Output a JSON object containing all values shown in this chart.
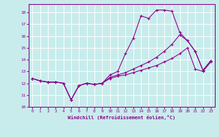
{
  "xlabel": "Windchill (Refroidissement éolien,°C)",
  "background_color": "#c8ecec",
  "line_color": "#8b008b",
  "grid_color": "#aaaaaa",
  "xmin": -0.5,
  "xmax": 23.5,
  "ymin": 10,
  "ymax": 18.7,
  "yticks": [
    10,
    11,
    12,
    13,
    14,
    15,
    16,
    17,
    18
  ],
  "xticks": [
    0,
    1,
    2,
    3,
    4,
    5,
    6,
    7,
    8,
    9,
    10,
    11,
    12,
    13,
    14,
    15,
    16,
    17,
    18,
    19,
    20,
    21,
    22,
    23
  ],
  "series1_x": [
    0,
    1,
    2,
    3,
    4,
    5,
    6,
    7,
    8,
    9,
    10,
    11,
    12,
    13,
    14,
    15,
    16,
    17,
    18,
    19,
    20,
    21,
    22,
    23
  ],
  "series1_y": [
    12.4,
    12.2,
    12.1,
    12.1,
    12.0,
    10.6,
    11.8,
    12.0,
    11.9,
    12.0,
    12.7,
    13.0,
    14.5,
    15.8,
    17.7,
    17.5,
    18.2,
    18.2,
    18.1,
    16.3,
    15.6,
    14.7,
    13.1,
    13.9
  ],
  "series2_x": [
    0,
    1,
    2,
    3,
    4,
    5,
    6,
    7,
    8,
    9,
    10,
    11,
    12,
    13,
    14,
    15,
    16,
    17,
    18,
    19,
    20,
    21,
    22,
    23
  ],
  "series2_y": [
    12.4,
    12.2,
    12.1,
    12.1,
    12.0,
    10.6,
    11.8,
    12.0,
    11.9,
    12.0,
    12.5,
    12.7,
    12.9,
    13.2,
    13.5,
    13.8,
    14.2,
    14.7,
    15.3,
    16.1,
    15.6,
    14.7,
    13.1,
    13.9
  ],
  "series3_x": [
    0,
    1,
    2,
    3,
    4,
    5,
    6,
    7,
    8,
    9,
    10,
    11,
    12,
    13,
    14,
    15,
    16,
    17,
    18,
    19,
    20,
    21,
    22,
    23
  ],
  "series3_y": [
    12.4,
    12.2,
    12.1,
    12.1,
    12.0,
    10.6,
    11.8,
    12.0,
    11.9,
    12.0,
    12.4,
    12.6,
    12.7,
    12.9,
    13.1,
    13.3,
    13.5,
    13.8,
    14.1,
    14.5,
    15.0,
    13.2,
    13.0,
    13.8
  ]
}
